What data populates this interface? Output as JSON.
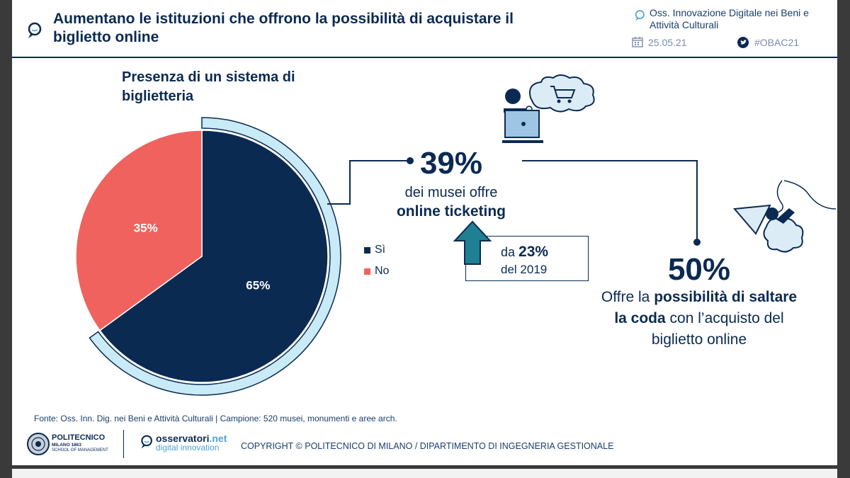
{
  "header": {
    "title": "Aumentano le istituzioni che offrono la possibilità di acquistare il biglietto online",
    "source": "Oss. Innovazione Digitale nei Beni e Attività Culturali",
    "date": "25.05.21",
    "hashtag": "#OBAC21",
    "icons": [
      "magnifier-chat-icon",
      "calendar-icon",
      "twitter-icon"
    ]
  },
  "chart_data": {
    "type": "pie",
    "title": "Presenza di un sistema di biglietteria",
    "categories": [
      "Sì",
      "No"
    ],
    "values": [
      65,
      35
    ],
    "labels": [
      "65%",
      "35%"
    ],
    "colors": [
      "#0b2a52",
      "#f0625e"
    ],
    "highlight_color": "#c9eaf7",
    "legend_position": "right"
  },
  "stat39": {
    "value": "39%",
    "line1": "dei musei offre",
    "line2": "online ticketing",
    "prev_prefix": "da",
    "prev_value": "23%",
    "prev_suffix": "del 2019"
  },
  "stat50": {
    "value": "50%",
    "text_pre": "Offre la",
    "text_bold": "possibilità di saltare la coda",
    "text_post": "con l’acquisto del biglietto online"
  },
  "footer": {
    "source_note": "Fonte: Oss. Inn. Dig. nei Beni e Attività Culturali | Campione: 520 musei, monumenti e aree arch.",
    "copyright": "COPYRIGHT © POLITECNICO DI MILANO / DIPARTIMENTO DI INGEGNERIA GESTIONALE",
    "polimi_name": "POLITECNICO",
    "polimi_sub1": "MILANO 1863",
    "polimi_sub2": "SCHOOL OF MANAGEMENT",
    "oss_brand_a": "osservatori",
    "oss_brand_b": ".net",
    "oss_brand_c": "digital innovation"
  },
  "colors": {
    "navy": "#0b2a52",
    "red": "#f0625e",
    "lightblue": "#c9eaf7",
    "teal": "#1f7f93"
  }
}
